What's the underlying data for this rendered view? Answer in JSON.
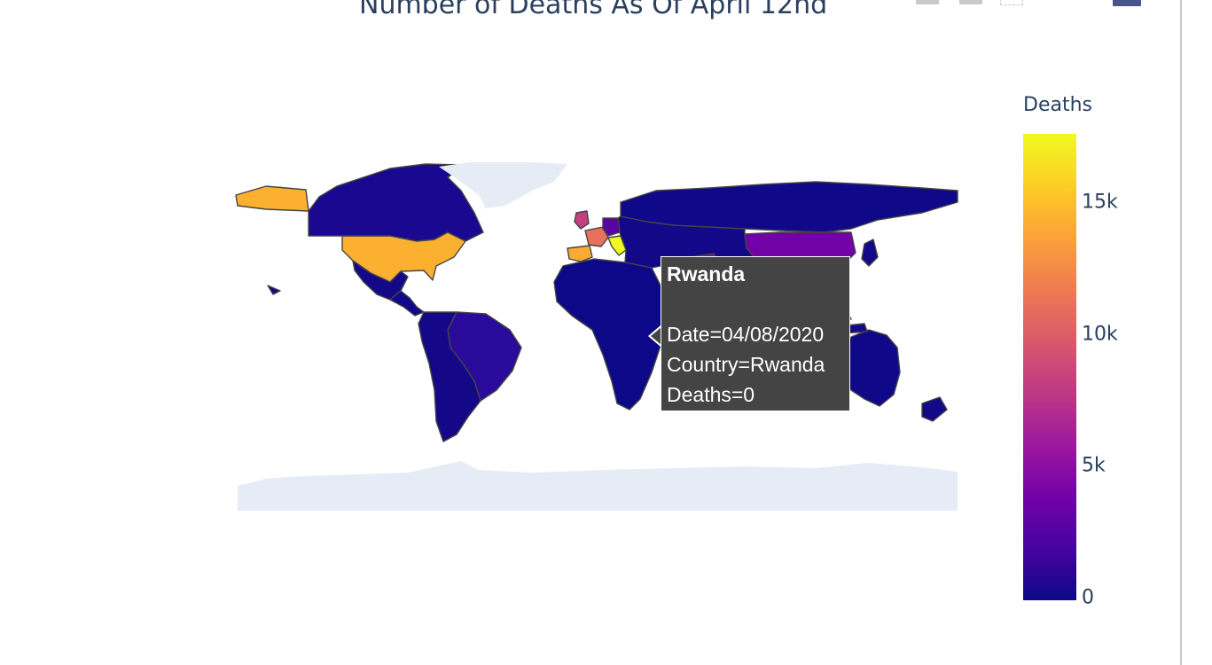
{
  "chart_data": {
    "type": "choropleth",
    "title": "Number of Deaths As Of April 12nd",
    "colorbar": {
      "title": "Deaths",
      "tick_labels": [
        "15k",
        "10k",
        "5k",
        "0"
      ],
      "tick_values": [
        15000,
        10000,
        5000,
        0
      ],
      "range": [
        0,
        17700
      ],
      "colorscale": [
        "#0d0887",
        "#46039f",
        "#7201a8",
        "#9c179e",
        "#bd3786",
        "#d8576b",
        "#ed7953",
        "#fb9f3a",
        "#fdca26",
        "#f0f921"
      ]
    },
    "regions": [
      {
        "name": "USA",
        "deaths": 14000,
        "color": "#fbb030"
      },
      {
        "name": "Canada",
        "deaths": 300,
        "color": "#1a0890"
      },
      {
        "name": "Mexico",
        "deaths": 200,
        "color": "#140889"
      },
      {
        "name": "Central America",
        "deaths": 50,
        "color": "#10088a"
      },
      {
        "name": "Brazil",
        "deaths": 1000,
        "color": "#2a0a9a"
      },
      {
        "name": "South America (rest)",
        "deaths": 200,
        "color": "#140889"
      },
      {
        "name": "Greenland",
        "deaths": null,
        "color": "#e5ecf6"
      },
      {
        "name": "Antarctica",
        "deaths": null,
        "color": "#e5ecf6"
      },
      {
        "name": "Italy",
        "deaths": 17700,
        "color": "#f0f921"
      },
      {
        "name": "Spain",
        "deaths": 14500,
        "color": "#fbab34"
      },
      {
        "name": "France",
        "deaths": 10300,
        "color": "#e8705c"
      },
      {
        "name": "UK",
        "deaths": 8000,
        "color": "#c5407d"
      },
      {
        "name": "Germany",
        "deaths": 2300,
        "color": "#5a03a5"
      },
      {
        "name": "Russia",
        "deaths": 50,
        "color": "#0f0888"
      },
      {
        "name": "China",
        "deaths": 3300,
        "color": "#7201a8"
      },
      {
        "name": "Iran",
        "deaths": 3800,
        "color": "#7a02a8"
      },
      {
        "name": "Africa",
        "deaths": 0,
        "color": "#0d0887"
      },
      {
        "name": "Australia",
        "deaths": 50,
        "color": "#0f0888"
      }
    ],
    "hover": {
      "name": "Rwanda",
      "lines": [
        "Date=04/08/2020",
        "Country=Rwanda",
        "Deaths=0"
      ]
    }
  }
}
